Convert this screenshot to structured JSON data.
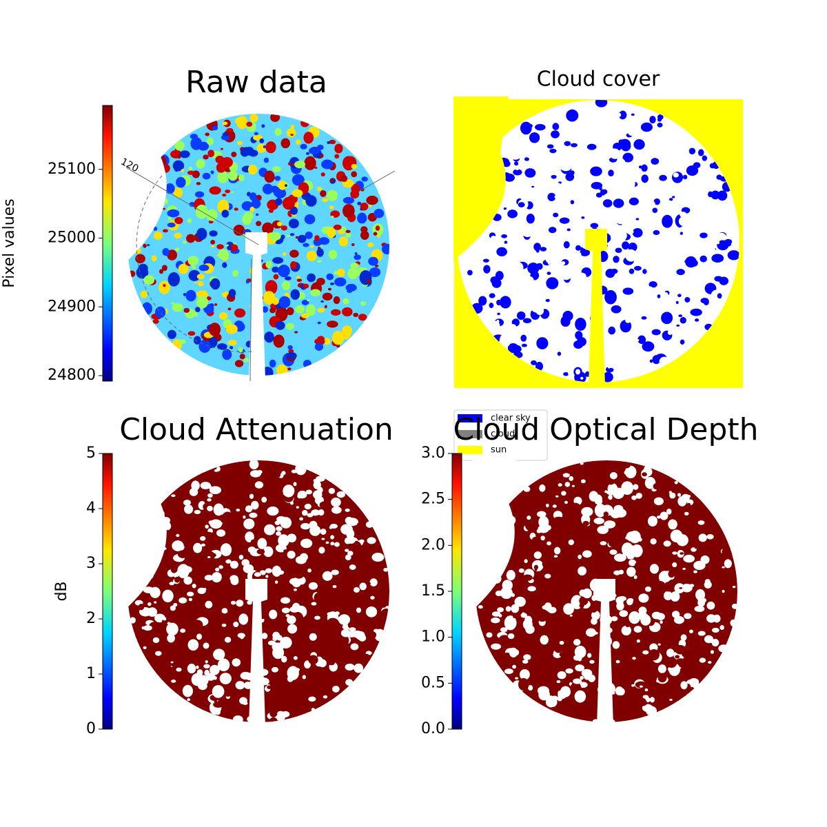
{
  "chart_data": [
    {
      "type": "image",
      "title": "Raw data",
      "colormap": "jet",
      "annotations": [
        "120"
      ],
      "colorbar": {
        "label": "Pixel values",
        "lim": [
          24792,
          25193
        ],
        "ticks": [
          24800,
          24900,
          25000,
          25100
        ]
      }
    },
    {
      "type": "categorical-image",
      "title": "Cloud cover",
      "series": [
        {
          "name": "clear sky",
          "color": "#0000ff"
        },
        {
          "name": "cloud",
          "color": "#808080"
        },
        {
          "name": "sun",
          "color": "#ffff00"
        }
      ]
    },
    {
      "type": "image",
      "title": "Cloud Attenuation",
      "colormap": "jet",
      "colorbar": {
        "label": "dB",
        "lim": [
          0,
          5
        ],
        "ticks": [
          0,
          1,
          2,
          3,
          4,
          5
        ]
      }
    },
    {
      "type": "image",
      "title": "Cloud Optical Depth",
      "colormap": "jet",
      "colorbar": {
        "lim": [
          0,
          3
        ],
        "ticks": [
          {
            "value": 0,
            "label": "0.0"
          },
          {
            "value": 0.5,
            "label": "0.5"
          },
          {
            "value": 1,
            "label": "1.0"
          },
          {
            "value": 1.5,
            "label": "1.5"
          },
          {
            "value": 2,
            "label": "2.0"
          },
          {
            "value": 2.5,
            "label": "2.5"
          },
          {
            "value": 3,
            "label": "3.0"
          }
        ]
      }
    }
  ]
}
